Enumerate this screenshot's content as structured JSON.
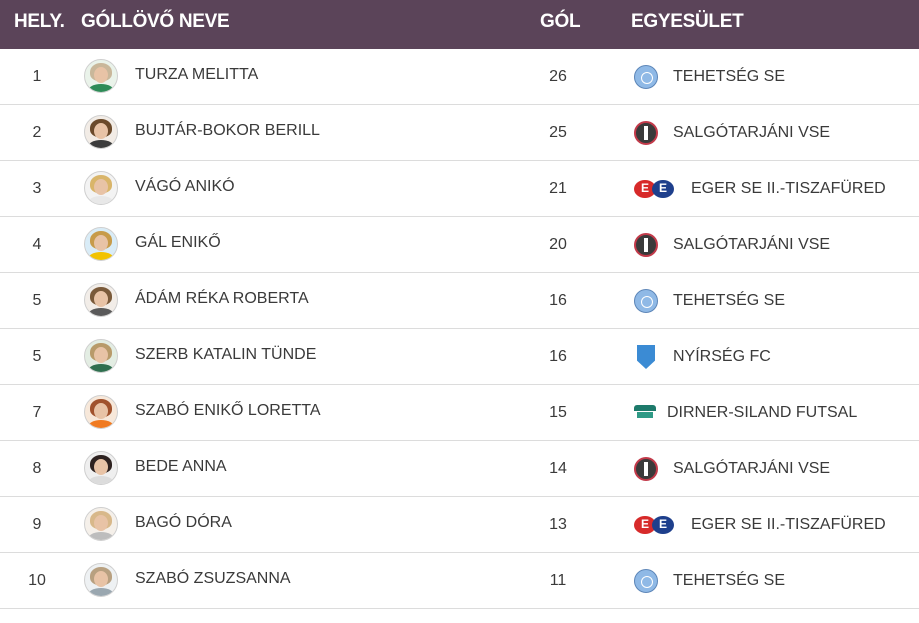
{
  "header": {
    "rank": "HELY.",
    "name": "GÓLLÖVŐ NEVE",
    "goals": "GÓL",
    "club": "EGYESÜLET"
  },
  "colors": {
    "header_bg": "#5b4459",
    "header_text": "#ffffff",
    "row_border": "#dcdcdc"
  },
  "rows": [
    {
      "rank": "1",
      "name": "TURZA MELITTA",
      "goals": "26",
      "club": "TEHETSÉG SE",
      "logo": "tehetseg-se-logo"
    },
    {
      "rank": "2",
      "name": "BUJTÁR-BOKOR BERILL",
      "goals": "25",
      "club": "SALGÓTARJÁNI VSE",
      "logo": "salgotarjani-vse-logo"
    },
    {
      "rank": "3",
      "name": "VÁGÓ ANIKÓ",
      "goals": "21",
      "club": "EGER SE II.-TISZAFÜRED",
      "logo": "eger-se-logo"
    },
    {
      "rank": "4",
      "name": "GÁL ENIKŐ",
      "goals": "20",
      "club": "SALGÓTARJÁNI VSE",
      "logo": "salgotarjani-vse-logo"
    },
    {
      "rank": "5",
      "name": "ÁDÁM RÉKA ROBERTA",
      "goals": "16",
      "club": "TEHETSÉG SE",
      "logo": "tehetseg-se-logo"
    },
    {
      "rank": "5",
      "name": "SZERB KATALIN TÜNDE",
      "goals": "16",
      "club": "NYÍRSÉG FC",
      "logo": "nyirseg-fc-logo"
    },
    {
      "rank": "7",
      "name": "SZABÓ ENIKŐ LORETTA",
      "goals": "15",
      "club": "DIRNER-SILAND FUTSAL",
      "logo": "dirner-siland-logo"
    },
    {
      "rank": "8",
      "name": "BEDE ANNA",
      "goals": "14",
      "club": "SALGÓTARJÁNI VSE",
      "logo": "salgotarjani-vse-logo"
    },
    {
      "rank": "9",
      "name": "BAGÓ DÓRA",
      "goals": "13",
      "club": "EGER SE II.-TISZAFÜRED",
      "logo": "eger-se-logo"
    },
    {
      "rank": "10",
      "name": "SZABÓ ZSUZSANNA",
      "goals": "11",
      "club": "TEHETSÉG SE",
      "logo": "tehetseg-se-logo"
    }
  ]
}
